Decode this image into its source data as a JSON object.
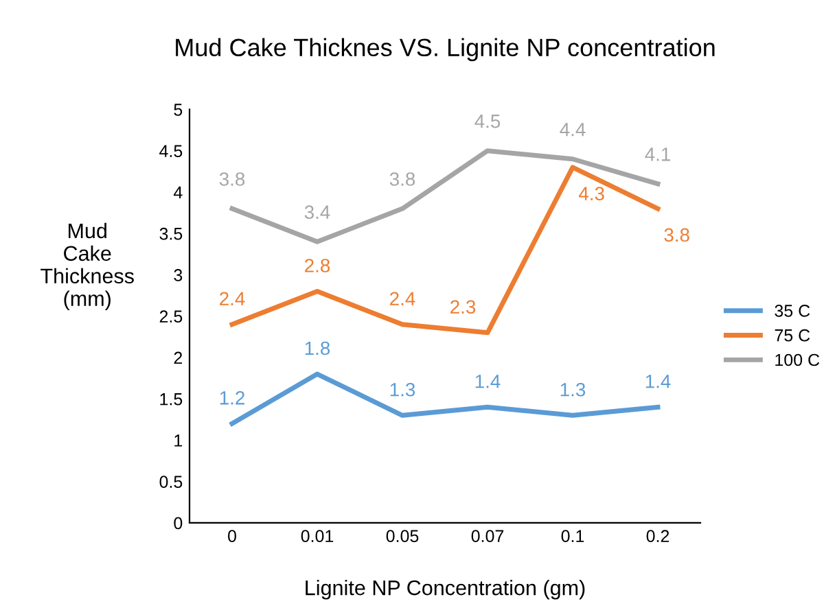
{
  "chart_data": {
    "type": "line",
    "title": "Mud Cake Thicknes VS. Lignite NP concentration",
    "xlabel": "Lignite NP Concentration (gm)",
    "ylabel": "Mud\nCake\nThickness\n(mm)",
    "categories": [
      "0",
      "0.01",
      "0.05",
      "0.07",
      "0.1",
      "0.2"
    ],
    "series": [
      {
        "name": "35 C",
        "color": "#5b9bd5",
        "values": [
          1.2,
          1.8,
          1.3,
          1.4,
          1.3,
          1.4
        ]
      },
      {
        "name": "75 C",
        "color": "#ed7d31",
        "values": [
          2.4,
          2.8,
          2.4,
          2.3,
          4.3,
          3.8
        ]
      },
      {
        "name": "100 C",
        "color": "#a5a5a5",
        "values": [
          3.8,
          3.4,
          3.8,
          4.5,
          4.4,
          4.1
        ]
      }
    ],
    "ylim": [
      0,
      5
    ],
    "yticks": [
      0,
      0.5,
      1,
      1.5,
      2,
      2.5,
      3,
      3.5,
      4,
      4.5,
      5
    ],
    "grid": false,
    "legend": "right",
    "data_labels": true,
    "marker": "none",
    "line_style": "solid"
  }
}
